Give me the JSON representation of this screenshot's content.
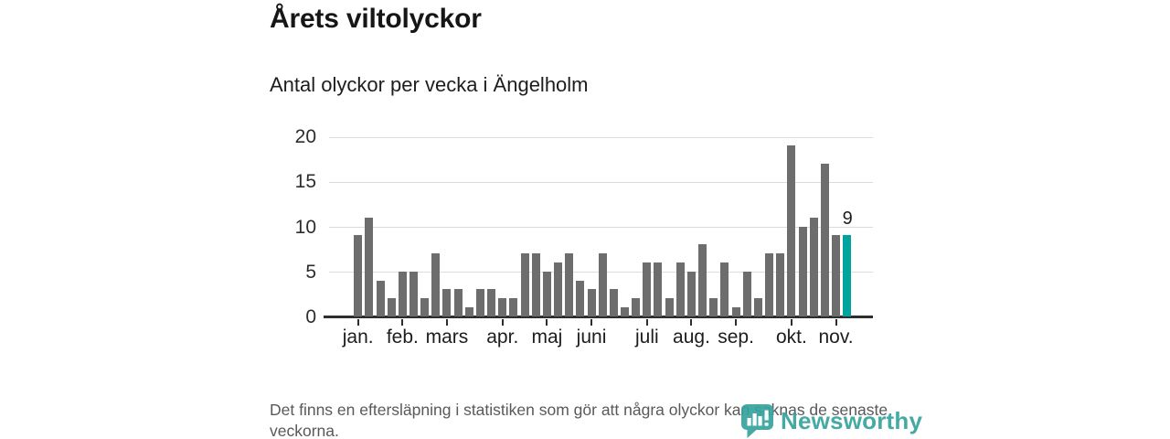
{
  "header": {
    "title": "Årets viltolyckor",
    "subtitle": "Antal olyckor per vecka i Ängelholm"
  },
  "chart_data": {
    "type": "bar",
    "title": "Årets viltolyckor",
    "subtitle": "Antal olyckor per vecka i Ängelholm",
    "x_unit": "vecka",
    "values": [
      9,
      11,
      4,
      2,
      5,
      5,
      2,
      7,
      3,
      3,
      1,
      3,
      3,
      2,
      2,
      7,
      7,
      5,
      6,
      7,
      4,
      3,
      7,
      3,
      1,
      2,
      6,
      6,
      2,
      6,
      5,
      8,
      2,
      6,
      1,
      5,
      2,
      7,
      7,
      19,
      10,
      11,
      17,
      9,
      9
    ],
    "highlight_index": 44,
    "highlight_value_label": "9",
    "ylim": [
      0,
      20
    ],
    "y_ticks": [
      0,
      5,
      10,
      15,
      20
    ],
    "grid": true,
    "legend": "none",
    "month_ticks": [
      {
        "label": "jan.",
        "index": 0
      },
      {
        "label": "feb.",
        "index": 4
      },
      {
        "label": "mars",
        "index": 8
      },
      {
        "label": "apr.",
        "index": 13
      },
      {
        "label": "maj",
        "index": 17
      },
      {
        "label": "juni",
        "index": 21
      },
      {
        "label": "juli",
        "index": 26
      },
      {
        "label": "aug.",
        "index": 30
      },
      {
        "label": "sep.",
        "index": 34
      },
      {
        "label": "okt.",
        "index": 39
      },
      {
        "label": "nov.",
        "index": 43
      }
    ],
    "colors": {
      "bar": "#6d6d6d",
      "highlight": "#00a39e"
    }
  },
  "footer": {
    "note": "Det finns en eftersläpning i statistiken som gör att några olyckor kan saknas de senaste veckorna.",
    "brand": "Newsworthy",
    "brand_color": "#36a39d"
  }
}
